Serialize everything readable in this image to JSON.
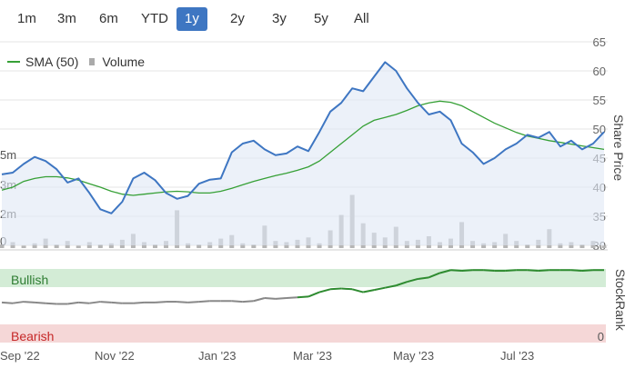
{
  "range_buttons": [
    {
      "label": "1m",
      "active": false
    },
    {
      "label": "3m",
      "active": false
    },
    {
      "label": "6m",
      "active": false
    },
    {
      "label": "YTD",
      "active": false
    },
    {
      "label": "1y",
      "active": true
    },
    {
      "label": "2y",
      "active": false
    },
    {
      "label": "3y",
      "active": false
    },
    {
      "label": "5y",
      "active": false
    },
    {
      "label": "All",
      "active": false
    }
  ],
  "legend": {
    "sma_label": "SMA (50)",
    "volume_label": "Volume"
  },
  "colors": {
    "price": "#3e76c2",
    "sma": "#36a036",
    "volume": "#b5b5b5",
    "bullish_band": "#d3ecd6",
    "bearish_band": "#f5d7d7",
    "stockrank": "#888888",
    "stockrank_bull": "#2e8b30",
    "active_button": "#3e76c2"
  },
  "price_axis": {
    "title": "Share Price",
    "ticks": [
      "65",
      "60",
      "55",
      "50",
      "45",
      "40",
      "35",
      "30"
    ],
    "ylim": [
      30,
      65
    ]
  },
  "volume_axis": {
    "ticks": [
      "5m",
      "3m",
      "2m",
      "0"
    ]
  },
  "stockrank_axis": {
    "title": "StockRank",
    "band_top": "Bullish",
    "band_bottom": "Bearish",
    "bottom_tick": "0"
  },
  "x_axis": {
    "labels": [
      "Sep '22",
      "Nov '22",
      "Jan '23",
      "Mar '23",
      "May '23",
      "Jul '23"
    ]
  },
  "chart_data": {
    "type": "line",
    "x_labels": [
      "Sep '22",
      "Nov '22",
      "Jan '23",
      "Mar '23",
      "May '23",
      "Jul '23"
    ],
    "ylim": [
      30,
      65
    ],
    "series": [
      {
        "name": "Share Price",
        "values": [
          42.2,
          42.5,
          44.0,
          45.2,
          44.5,
          43.1,
          40.8,
          41.5,
          39.0,
          36.2,
          35.5,
          37.5,
          41.5,
          42.5,
          41.2,
          39.0,
          38.0,
          38.5,
          40.6,
          41.3,
          41.5,
          46.0,
          47.5,
          48.0,
          46.5,
          45.5,
          45.8,
          47.0,
          46.2,
          49.5,
          53.0,
          54.5,
          57.0,
          56.5,
          59.0,
          61.5,
          60.0,
          57.0,
          54.5,
          52.5,
          53.0,
          51.5,
          47.5,
          46.0,
          44.0,
          45.0,
          46.5,
          47.5,
          49.0,
          48.5,
          49.5,
          47.0,
          48.0,
          46.5,
          47.5,
          49.5
        ]
      },
      {
        "name": "SMA (50)",
        "values": [
          39.5,
          40.0,
          41.0,
          41.5,
          41.8,
          41.8,
          41.6,
          41.2,
          40.6,
          40.0,
          39.3,
          38.8,
          38.6,
          38.8,
          39.0,
          39.2,
          39.3,
          39.2,
          39.0,
          39.0,
          39.3,
          39.8,
          40.4,
          41.0,
          41.5,
          42.0,
          42.4,
          42.9,
          43.5,
          44.5,
          46.0,
          47.5,
          49.0,
          50.5,
          51.5,
          52.0,
          52.5,
          53.2,
          54.0,
          54.5,
          54.8,
          54.6,
          54.0,
          53.0,
          52.0,
          51.0,
          50.2,
          49.4,
          48.8,
          48.4,
          48.0,
          47.7,
          47.4,
          47.1,
          46.8,
          46.5
        ]
      },
      {
        "name": "Volume",
        "values": [
          0.3,
          0.5,
          0.2,
          0.4,
          0.8,
          0.3,
          0.6,
          0.2,
          0.5,
          0.3,
          0.4,
          0.7,
          1.2,
          0.5,
          0.3,
          0.6,
          3.2,
          0.4,
          0.3,
          0.5,
          0.8,
          1.1,
          0.4,
          0.3,
          1.9,
          0.6,
          0.5,
          0.7,
          0.9,
          0.4,
          1.5,
          2.8,
          4.5,
          2.1,
          1.3,
          0.9,
          1.8,
          0.6,
          0.7,
          1.0,
          0.5,
          0.8,
          2.2,
          0.6,
          0.4,
          0.5,
          1.2,
          0.6,
          0.3,
          0.7,
          1.6,
          0.4,
          0.5,
          0.3,
          0.6,
          0.2
        ]
      }
    ],
    "stockrank": [
      52,
      51,
      53,
      52,
      51,
      50,
      50,
      52,
      51,
      53,
      52,
      51,
      51,
      52,
      52,
      53,
      53,
      52,
      53,
      54,
      54,
      54,
      53,
      54,
      58,
      57,
      58,
      59,
      60,
      66,
      70,
      71,
      70,
      66,
      69,
      72,
      75,
      80,
      84,
      86,
      92,
      96,
      95,
      96,
      96,
      95,
      95,
      96,
      96,
      95,
      96,
      96,
      96,
      95,
      96,
      96
    ]
  }
}
